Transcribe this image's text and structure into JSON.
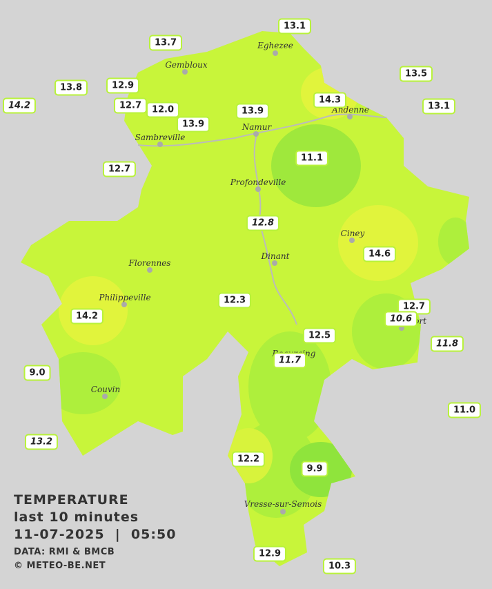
{
  "stations": [
    {
      "value": "13.1",
      "italic": false
    },
    {
      "value": "13.7",
      "italic": false
    },
    {
      "value": "13.5",
      "italic": false
    },
    {
      "value": "13.8",
      "italic": false
    },
    {
      "value": "12.9",
      "italic": false
    },
    {
      "value": "14.3",
      "italic": false
    },
    {
      "value": "14.2",
      "italic": true
    },
    {
      "value": "12.7",
      "italic": false
    },
    {
      "value": "12.0",
      "italic": false
    },
    {
      "value": "13.1",
      "italic": false
    },
    {
      "value": "13.9",
      "italic": false
    },
    {
      "value": "13.9",
      "italic": false
    },
    {
      "value": "11.1",
      "italic": false
    },
    {
      "value": "12.7",
      "italic": false
    },
    {
      "value": "12.8",
      "italic": true
    },
    {
      "value": "14.6",
      "italic": false
    },
    {
      "value": "12.3",
      "italic": false
    },
    {
      "value": "12.7",
      "italic": false
    },
    {
      "value": "10.6",
      "italic": true
    },
    {
      "value": "14.2",
      "italic": false
    },
    {
      "value": "12.5",
      "italic": false
    },
    {
      "value": "11.8",
      "italic": true
    },
    {
      "value": "11.7",
      "italic": true
    },
    {
      "value": "9.0",
      "italic": false
    },
    {
      "value": "11.0",
      "italic": false
    },
    {
      "value": "13.2",
      "italic": true
    },
    {
      "value": "12.2",
      "italic": false
    },
    {
      "value": "9.9",
      "italic": false
    },
    {
      "value": "12.9",
      "italic": false
    },
    {
      "value": "10.3",
      "italic": false
    }
  ],
  "towns": [
    "Eghezee",
    "Gembloux",
    "Andenne",
    "Namur",
    "Sambreville",
    "Profondeville",
    "Ciney",
    "Dinant",
    "Florennes",
    "Philippeville",
    "Rochefort",
    "Beauraing",
    "Couvin",
    "Vresse-sur-Semois"
  ],
  "legend": {
    "title": "TEMPERATURE",
    "subtitle": "last 10 minutes",
    "datetime": "11-07-2025  |  05:50",
    "source": "DATA: RMI & BMCB",
    "copyright": "© METEO-BE.NET"
  }
}
